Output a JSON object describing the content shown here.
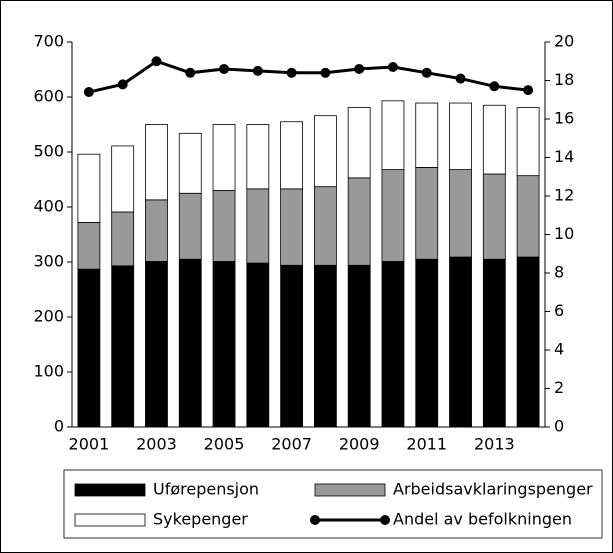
{
  "chart_data": {
    "type": "bar",
    "categories": [
      "2001",
      null,
      "2003",
      null,
      "2005",
      null,
      "2007",
      null,
      "2009",
      null,
      "2011",
      null,
      "2013",
      null
    ],
    "stacked": true,
    "series": [
      {
        "name": "Uførepensjon",
        "color": "#000000",
        "values": [
          287,
          293,
          301,
          305,
          301,
          298,
          294,
          294,
          294,
          301,
          305,
          309,
          305,
          309
        ]
      },
      {
        "name": "Arbeidsavklaringspenger",
        "color": "#999999",
        "values": [
          85,
          98,
          112,
          120,
          129,
          135,
          139,
          143,
          159,
          167,
          167,
          159,
          155,
          148
        ]
      },
      {
        "name": "Sykepenger",
        "color": "#ffffff",
        "values": [
          124,
          120,
          137,
          109,
          120,
          117,
          122,
          129,
          128,
          125,
          117,
          121,
          125,
          124
        ]
      },
      {
        "name": "Andel av befolkningen",
        "type": "line",
        "axis": "y2",
        "color": "#000000",
        "values": [
          17.4,
          17.8,
          19.0,
          18.4,
          18.6,
          18.5,
          18.4,
          18.4,
          18.6,
          18.7,
          18.4,
          18.1,
          17.7,
          17.5
        ]
      }
    ],
    "ylim": [
      0,
      700
    ],
    "yticks": [
      0,
      100,
      200,
      300,
      400,
      500,
      600,
      700
    ],
    "y2lim": [
      0,
      20
    ],
    "y2ticks": [
      0,
      2,
      4,
      6,
      8,
      10,
      12,
      14,
      16,
      18,
      20
    ]
  }
}
